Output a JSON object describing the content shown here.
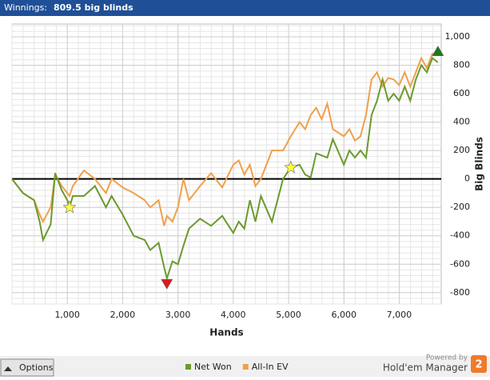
{
  "header": {
    "label": "Winnings:",
    "value": "809.5 big blinds"
  },
  "footer": {
    "button": "Options",
    "powered": "Powered by",
    "brand": "Hold'em Manager",
    "badge": "2"
  },
  "chart_data": {
    "type": "line",
    "xlabel": "Hands",
    "ylabel": "Big Blinds",
    "x": [
      0,
      200,
      400,
      500,
      560,
      700,
      780,
      900,
      1000,
      1040,
      1100,
      1300,
      1500,
      1700,
      1800,
      2000,
      2200,
      2400,
      2500,
      2650,
      2750,
      2800,
      2900,
      3000,
      3100,
      3200,
      3400,
      3600,
      3800,
      4000,
      4100,
      4200,
      4300,
      4400,
      4500,
      4700,
      4900,
      5040,
      5200,
      5300,
      5400,
      5500,
      5600,
      5700,
      5800,
      6000,
      6100,
      6200,
      6300,
      6400,
      6500,
      6600,
      6700,
      6800,
      6900,
      7000,
      7100,
      7200,
      7300,
      7400,
      7500,
      7600,
      7700
    ],
    "series": [
      {
        "name": "Net Won",
        "color": "#6b9a2e",
        "values": [
          0,
          -100,
          -150,
          -300,
          -430,
          -320,
          40,
          -80,
          -150,
          -200,
          -120,
          -120,
          -50,
          -200,
          -120,
          -250,
          -400,
          -430,
          -500,
          -450,
          -620,
          -700,
          -580,
          -600,
          -470,
          -350,
          -280,
          -330,
          -260,
          -380,
          -300,
          -350,
          -150,
          -300,
          -120,
          -300,
          0,
          80,
          100,
          30,
          10,
          180,
          165,
          150,
          280,
          100,
          200,
          150,
          200,
          150,
          450,
          550,
          700,
          550,
          600,
          550,
          650,
          550,
          700,
          800,
          750,
          850,
          820
        ]
      },
      {
        "name": "All-In EV",
        "color": "#f0a04a",
        "values": [
          0,
          -100,
          -150,
          -250,
          -300,
          -200,
          30,
          -50,
          -100,
          -120,
          -50,
          60,
          0,
          -100,
          0,
          -60,
          -100,
          -150,
          -200,
          -150,
          -330,
          -260,
          -300,
          -200,
          0,
          -150,
          -50,
          40,
          -60,
          100,
          130,
          30,
          100,
          -50,
          0,
          200,
          200,
          300,
          400,
          350,
          450,
          500,
          420,
          530,
          350,
          300,
          350,
          270,
          300,
          450,
          700,
          750,
          650,
          710,
          700,
          660,
          750,
          650,
          750,
          850,
          780,
          880,
          880
        ]
      }
    ],
    "markers": [
      {
        "shape": "star",
        "color": "#ffff40",
        "x": 1040,
        "y": -200
      },
      {
        "shape": "star",
        "color": "#ffff40",
        "x": 5040,
        "y": 80
      },
      {
        "shape": "triangle-down",
        "color": "#dd1a1a",
        "x": 2800,
        "y": -740
      },
      {
        "shape": "triangle-up",
        "color": "#1a7a1a",
        "x": 7700,
        "y": 900
      }
    ],
    "xlim": [
      0,
      7760
    ],
    "ylim": [
      -880,
      1090
    ],
    "xticks": [
      {
        "value": 1000,
        "label": "1,000"
      },
      {
        "value": 2000,
        "label": "2,000"
      },
      {
        "value": 3000,
        "label": "3,000"
      },
      {
        "value": 4000,
        "label": "4,000"
      },
      {
        "value": 5000,
        "label": "5,000"
      },
      {
        "value": 6000,
        "label": "6,000"
      },
      {
        "value": 7000,
        "label": "7,000"
      }
    ],
    "yticks": [
      -800,
      -600,
      -400,
      -200,
      0,
      200,
      400,
      600,
      800,
      {
        "value": 1000,
        "label": "1,000"
      }
    ],
    "grid": true
  }
}
